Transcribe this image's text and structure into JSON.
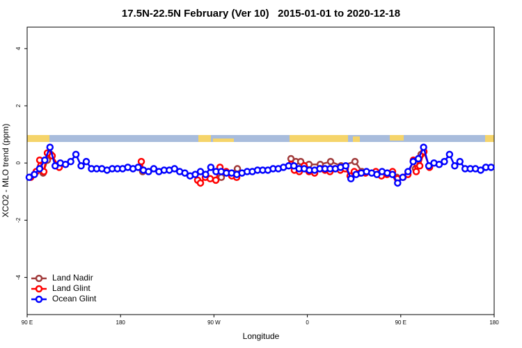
{
  "chart_data": {
    "type": "line",
    "title": "17.5N-22.5N February (Ver 10)   2015-01-01 to 2020-12-18",
    "x_label": "Longitude",
    "y_label": "XCO2 - MLO trend (ppm)",
    "xlim": [
      90,
      540
    ],
    "ylim": [
      -5.3,
      4.75
    ],
    "xticks": [
      {
        "value": 90,
        "label": "90 E"
      },
      180,
      {
        "value": 270,
        "label": "90 W"
      },
      {
        "value": 360,
        "label": "0"
      },
      {
        "value": 450,
        "label": "90 E"
      },
      {
        "value": 540,
        "label": "180"
      }
    ],
    "yticks": [
      -4,
      -2,
      0,
      2,
      4
    ],
    "legend": "bottom-left",
    "series": [
      {
        "name": "Land Nadir",
        "color": "#a03a3a",
        "x": [
          105.4,
          109.5,
          112.8,
          null,
          201.3,
          null,
          277.1,
          292.6,
          null,
          344.2,
          348.9,
          353.6,
          361.6,
          372.4,
          382.4,
          392.5,
          405.9,
          412.6,
          null,
          446.1,
          null,
          464.2,
          469.6
        ],
        "values": [
          -0.35,
          0.1,
          0.3,
          null,
          -0.3,
          null,
          -0.5,
          -0.2,
          null,
          0.15,
          0.05,
          0.05,
          -0.05,
          -0.05,
          0.05,
          -0.1,
          0.05,
          -0.3,
          null,
          -0.5,
          null,
          -0.2,
          0.3
        ]
      },
      {
        "name": "Land Glint",
        "color": "#ff0000",
        "x": [
          93.4,
          98.7,
          102.1,
          106.1,
          109.5,
          114.1,
          120.9,
          null,
          200,
          202,
          null,
          254.3,
          257,
          261.7,
          266.4,
          271.8,
          275.8,
          281.8,
          287.2,
          291.9,
          null,
          344.2,
          347.5,
          352.2,
          356.9,
          361.6,
          367,
          372.4,
          377,
          381.8,
          386.5,
          391.8,
          396.5,
          401.2,
          405.2,
          410.6,
          416,
          426,
          431.4,
          436.8,
          442.1,
          446.8,
          452.2,
          456.9,
          462.2,
          464.9,
          468.3,
          472.3,
          477.7
        ],
        "values": [
          -0.5,
          -0.3,
          0.1,
          -0.3,
          0.35,
          0.25,
          -0.15,
          null,
          0.05,
          -0.25,
          null,
          -0.6,
          -0.7,
          -0.5,
          -0.55,
          -0.6,
          -0.15,
          -0.3,
          -0.45,
          -0.5,
          null,
          -0.05,
          -0.25,
          -0.3,
          -0.1,
          -0.3,
          -0.35,
          -0.2,
          -0.25,
          -0.3,
          -0.2,
          -0.25,
          -0.2,
          -0.45,
          -0.3,
          -0.35,
          -0.35,
          -0.3,
          -0.45,
          -0.4,
          -0.3,
          -0.55,
          -0.5,
          -0.4,
          0.1,
          -0.3,
          -0.1,
          0.4,
          -0.15
        ]
      },
      {
        "name": "Ocean Glint",
        "color": "#0000ff",
        "x": [
          92,
          97,
          102,
          107,
          112,
          117,
          122,
          127,
          132,
          137,
          142,
          147,
          152,
          157,
          162,
          167,
          172,
          177,
          182,
          187,
          192,
          197,
          202,
          207,
          212,
          217,
          222,
          227,
          232,
          237,
          242,
          247,
          252,
          257,
          262,
          267,
          272,
          277,
          282,
          287,
          292,
          297,
          302,
          307,
          312,
          317,
          322,
          327,
          332,
          337,
          342,
          347,
          352,
          357,
          362,
          367,
          372,
          377,
          382,
          387,
          392,
          397,
          402,
          407,
          412,
          417,
          422,
          427,
          432,
          437,
          442,
          447,
          452,
          457,
          462,
          467,
          472,
          477,
          482,
          487,
          492,
          497,
          502,
          507,
          512,
          517,
          522,
          527,
          532,
          537
        ],
        "values": [
          -0.5,
          -0.4,
          -0.2,
          0.1,
          0.55,
          -0.1,
          0.0,
          -0.05,
          0.05,
          0.3,
          -0.1,
          0.05,
          -0.2,
          -0.2,
          -0.2,
          -0.25,
          -0.2,
          -0.2,
          -0.2,
          -0.15,
          -0.2,
          -0.15,
          -0.25,
          -0.3,
          -0.2,
          -0.3,
          -0.25,
          -0.25,
          -0.2,
          -0.3,
          -0.35,
          -0.45,
          -0.4,
          -0.3,
          -0.4,
          -0.15,
          -0.3,
          -0.3,
          -0.35,
          -0.35,
          -0.4,
          -0.35,
          -0.3,
          -0.3,
          -0.25,
          -0.25,
          -0.25,
          -0.2,
          -0.2,
          -0.15,
          -0.1,
          -0.1,
          -0.2,
          -0.2,
          -0.25,
          -0.25,
          -0.2,
          -0.2,
          -0.2,
          -0.2,
          -0.15,
          -0.1,
          -0.55,
          -0.4,
          -0.35,
          -0.3,
          -0.35,
          -0.4,
          -0.3,
          -0.35,
          -0.4,
          -0.7,
          -0.5,
          -0.3,
          0.05,
          0.15,
          0.55,
          -0.1,
          0.0,
          -0.05,
          0.05,
          0.3,
          -0.1,
          0.05,
          -0.2,
          -0.2,
          -0.2,
          -0.25,
          -0.15,
          -0.15
        ]
      }
    ]
  }
}
